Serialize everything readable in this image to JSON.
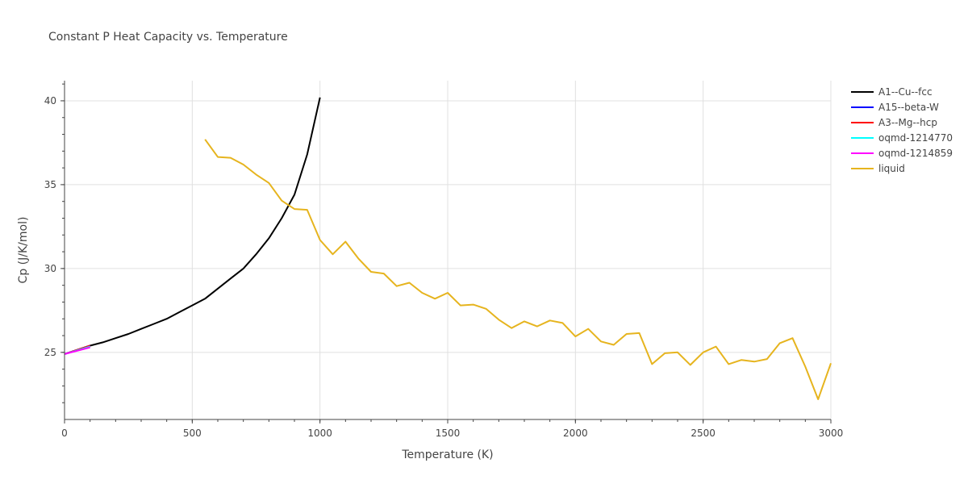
{
  "chart_data": {
    "type": "line",
    "title": "Constant P Heat Capacity vs. Temperature",
    "xlabel": "Temperature (K)",
    "ylabel": "Cp (J/K/mol)",
    "xlim": [
      0,
      3000
    ],
    "ylim": [
      21.0,
      41.2
    ],
    "xticks": [
      0,
      500,
      1000,
      1500,
      2000,
      2500,
      3000
    ],
    "xtick_labels": [
      "0",
      "500",
      "1000",
      "1500",
      "2000",
      "2500",
      "3000"
    ],
    "yticks": [
      25,
      30,
      35,
      40
    ],
    "ytick_labels": [
      "25",
      "30",
      "35",
      "40"
    ],
    "grid": true,
    "legend_position": "right",
    "series": [
      {
        "name": "A1--Cu--fcc",
        "color": "#000000",
        "x": [
          0,
          50,
          100,
          150,
          200,
          250,
          300,
          350,
          400,
          450,
          500,
          550,
          600,
          650,
          700,
          750,
          800,
          850,
          900,
          950,
          1000
        ],
        "y": [
          24.9,
          25.15,
          25.4,
          25.6,
          25.85,
          26.1,
          26.4,
          26.7,
          27.0,
          27.4,
          27.8,
          28.2,
          28.8,
          29.4,
          30.0,
          30.85,
          31.8,
          33.0,
          34.4,
          36.8,
          40.2
        ]
      },
      {
        "name": "A15--beta-W",
        "color": "#0000ff",
        "x": [
          0,
          50,
          100
        ],
        "y": [
          24.9,
          25.15,
          25.4
        ]
      },
      {
        "name": "A3--Mg--hcp",
        "color": "#ff0000",
        "x": [
          0,
          50,
          100
        ],
        "y": [
          24.9,
          25.15,
          25.4
        ]
      },
      {
        "name": "oqmd-1214770",
        "color": "#00ffff",
        "x": [
          0,
          50,
          100
        ],
        "y": [
          24.9,
          25.12,
          25.35
        ]
      },
      {
        "name": "oqmd-1214859",
        "color": "#ff00ff",
        "x": [
          0,
          50,
          100
        ],
        "y": [
          24.9,
          25.1,
          25.3
        ]
      },
      {
        "name": "liquid",
        "color": "#e6b41e",
        "x": [
          550,
          600,
          650,
          700,
          750,
          800,
          850,
          900,
          950,
          1000,
          1050,
          1100,
          1150,
          1200,
          1250,
          1300,
          1350,
          1400,
          1450,
          1500,
          1550,
          1600,
          1650,
          1700,
          1750,
          1800,
          1850,
          1900,
          1950,
          2000,
          2050,
          2100,
          2150,
          2200,
          2250,
          2300,
          2350,
          2400,
          2450,
          2500,
          2550,
          2600,
          2650,
          2700,
          2750,
          2800,
          2850,
          2900,
          2950,
          3000
        ],
        "y": [
          37.7,
          36.65,
          36.6,
          36.2,
          35.6,
          35.1,
          34.05,
          33.55,
          33.5,
          31.7,
          30.85,
          31.6,
          30.6,
          29.8,
          29.7,
          28.95,
          29.15,
          28.55,
          28.2,
          28.55,
          27.8,
          27.85,
          27.6,
          26.95,
          26.45,
          26.85,
          26.55,
          26.9,
          26.75,
          25.95,
          26.4,
          25.65,
          25.45,
          26.1,
          26.15,
          24.3,
          24.95,
          25.0,
          24.25,
          25.0,
          25.35,
          24.3,
          24.55,
          24.45,
          24.6,
          25.55,
          25.85,
          24.15,
          22.2,
          24.35
        ]
      }
    ]
  }
}
